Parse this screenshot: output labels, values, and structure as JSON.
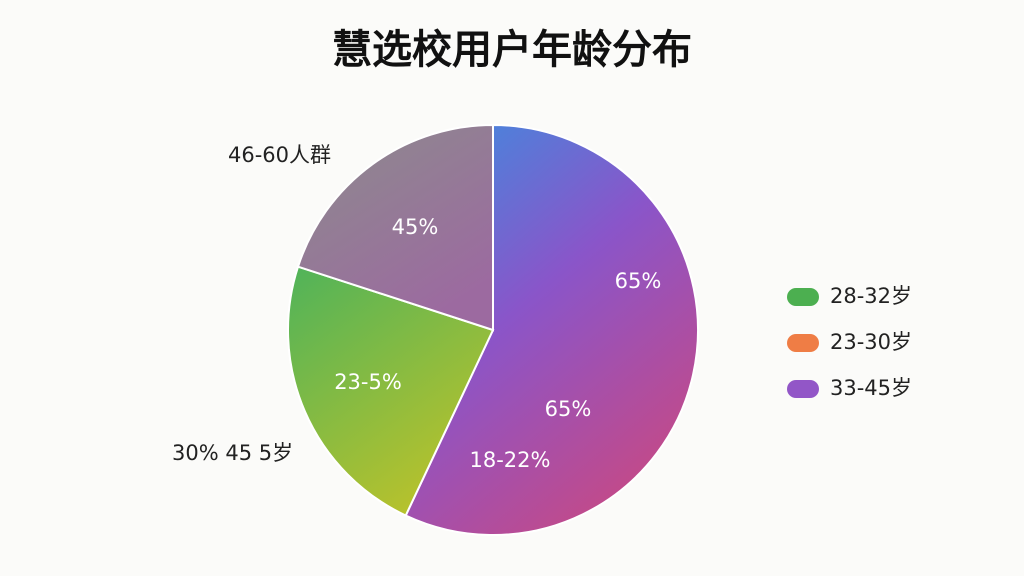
{
  "chart_data": {
    "type": "pie",
    "title": "慧选校用户年龄分布",
    "values": [
      57,
      23,
      20
    ],
    "colors": [
      [
        "#3a8fe0",
        "#8a55c9",
        "#c24a8a"
      ],
      [
        "#4fb35a",
        "#b8c22c"
      ],
      [
        "#8c8c8c",
        "#9c6aa0"
      ]
    ],
    "legend": [
      {
        "name": "28-32岁",
        "color": "#4caf50"
      },
      {
        "name": "23-30岁",
        "color": "#ef7d45"
      },
      {
        "name": "33-45岁",
        "color": "#9256c7"
      }
    ],
    "annotations": [
      "46-60人群",
      "45%",
      "65%",
      "65%",
      "23-5%",
      "18-22%",
      "30% 45 5岁"
    ]
  }
}
